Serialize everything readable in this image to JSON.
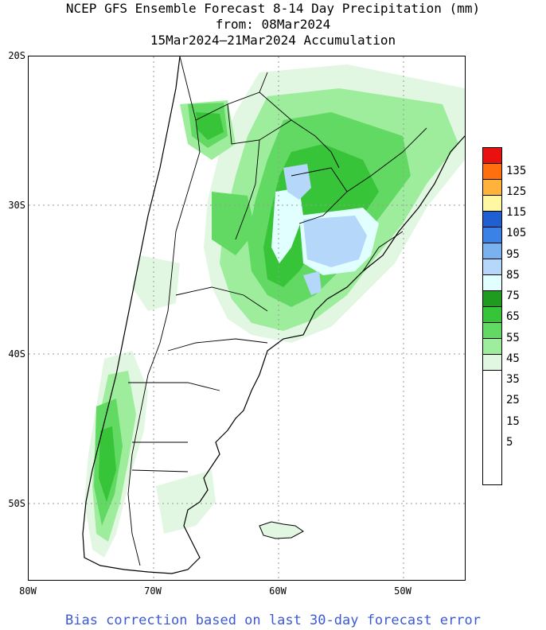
{
  "title": {
    "line1": "NCEP GFS Ensemble Forecast 8-14 Day Precipitation (mm)",
    "line2": "from: 08Mar2024",
    "line3": "15Mar2024–21Mar2024 Accumulation"
  },
  "axes": {
    "latitude_labels": [
      "20S",
      "30S",
      "40S",
      "50S"
    ],
    "longitude_labels": [
      "80W",
      "70W",
      "60W",
      "50W"
    ],
    "lat_range": [
      -55,
      -20
    ],
    "lon_range": [
      -80,
      -45
    ]
  },
  "legend": {
    "labels": [
      "135",
      "125",
      "115",
      "105",
      "95",
      "85",
      "75",
      "65",
      "55",
      "45",
      "35",
      "25",
      "15",
      "5"
    ],
    "colors": [
      "#e8110f",
      "#ff6f0e",
      "#ffb33b",
      "#fff7a2",
      "#1f5fd1",
      "#3a82e6",
      "#7ab2f0",
      "#b4d7fa",
      "#e1ffff",
      "#1f9c1f",
      "#38c438",
      "#62d962",
      "#9ded9d",
      "#e2f7e2",
      "#ffffff"
    ]
  },
  "footer": "Bias correction based on last 30-day forecast error"
}
